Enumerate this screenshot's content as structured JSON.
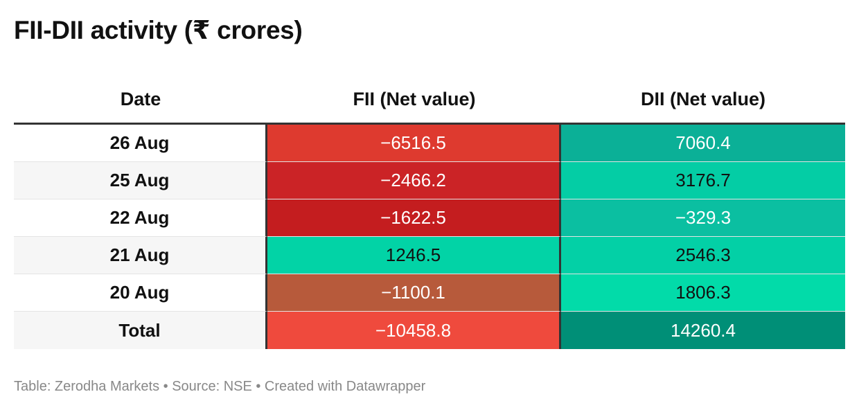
{
  "title": "FII-DII activity (₹ crores)",
  "source": "Table: Zerodha Markets • Source: NSE • Created with Datawrapper",
  "columns": [
    "Date",
    "FII (Net value)",
    "DII (Net value)"
  ],
  "chart_data": {
    "type": "table",
    "title": "FII-DII activity (₹ crores)",
    "columns": [
      "Date",
      "FII (Net value)",
      "DII (Net value)"
    ],
    "rows": [
      {
        "date": "26 Aug",
        "fii": "−6516.5",
        "dii": "7060.4",
        "fii_color": "#de3a2f",
        "dii_color": "#0bb097",
        "date_bg": "#ffffff",
        "fii_text": "#ffffff",
        "dii_text": "#ffffff"
      },
      {
        "date": "25 Aug",
        "fii": "−2466.2",
        "dii": "3176.7",
        "fii_color": "#cb2326",
        "dii_color": "#04cda5",
        "date_bg": "#f6f6f6",
        "fii_text": "#ffffff",
        "dii_text": "#111111"
      },
      {
        "date": "22 Aug",
        "fii": "−1622.5",
        "dii": "−329.3",
        "fii_color": "#c41d1f",
        "dii_color": "#0bbfa1",
        "date_bg": "#ffffff",
        "fii_text": "#ffffff",
        "dii_text": "#ffffff"
      },
      {
        "date": "21 Aug",
        "fii": "1246.5",
        "dii": "2546.3",
        "fii_color": "#02d3a6",
        "dii_color": "#03d0a6",
        "date_bg": "#f6f6f6",
        "fii_text": "#111111",
        "dii_text": "#111111"
      },
      {
        "date": "20 Aug",
        "fii": "−1100.1",
        "dii": "1806.3",
        "fii_color": "#b75a3b",
        "dii_color": "#02dba9",
        "date_bg": "#ffffff",
        "fii_text": "#ffffff",
        "dii_text": "#111111"
      },
      {
        "date": "Total",
        "fii": "−10458.8",
        "dii": "14260.4",
        "fii_color": "#ef4a3d",
        "dii_color": "#008f77",
        "date_bg": "#f6f6f6",
        "fii_text": "#ffffff",
        "dii_text": "#ffffff"
      }
    ]
  }
}
